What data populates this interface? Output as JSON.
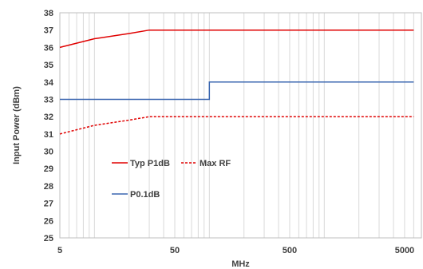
{
  "chart_data": {
    "type": "line",
    "title": "",
    "xlabel": "MHz",
    "ylabel": "Input Power (dBm)",
    "x_scale": "log",
    "xlim": [
      5,
      7000
    ],
    "ylim": [
      25,
      38
    ],
    "x_tick_labels": [
      "5",
      "50",
      "500",
      "5000"
    ],
    "x_ticks": [
      5,
      50,
      500,
      5000
    ],
    "y_ticks": [
      25,
      26,
      27,
      28,
      29,
      30,
      31,
      32,
      33,
      34,
      35,
      36,
      37,
      38
    ],
    "y_tick_labels": [
      "25",
      "26",
      "27",
      "28",
      "29",
      "30",
      "31",
      "32",
      "33",
      "34",
      "35",
      "36",
      "37",
      "38"
    ],
    "grid": "vertical-log",
    "series": [
      {
        "name": "Typ P1dB",
        "color": "#e00000",
        "dash": "solid",
        "points": [
          [
            5,
            36
          ],
          [
            10,
            36.5
          ],
          [
            20,
            36.8
          ],
          [
            30,
            37
          ],
          [
            6000,
            37
          ]
        ]
      },
      {
        "name": "Max RF",
        "color": "#e00000",
        "dash": "dashed",
        "points": [
          [
            5,
            31
          ],
          [
            10,
            31.5
          ],
          [
            20,
            31.8
          ],
          [
            30,
            32
          ],
          [
            6000,
            32
          ]
        ]
      },
      {
        "name": "P0.1dB",
        "color": "#3a66b0",
        "dash": "solid",
        "points": [
          [
            5,
            33
          ],
          [
            100,
            33
          ],
          [
            100,
            34
          ],
          [
            6000,
            34
          ]
        ]
      }
    ]
  }
}
